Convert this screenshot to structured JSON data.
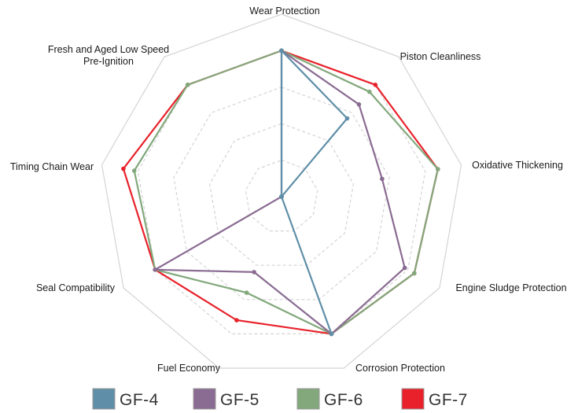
{
  "chart_data": {
    "type": "radar",
    "title": "",
    "axes": [
      "Wear Protection",
      "Piston Cleanliness",
      "Oxidative Thickening",
      "Engine Sludge Protection",
      "Corrosion Protection",
      "Fuel Economy",
      "Seal Compatibility",
      "Timing Chain Wear",
      "Fresh and Aged Low Speed Pre-Ignition"
    ],
    "axis_label_lines": [
      [
        "Wear Protection"
      ],
      [
        "Piston Cleanliness"
      ],
      [
        "Oxidative Thickening"
      ],
      [
        "Engine Sludge Protection"
      ],
      [
        "Corrosion Protection"
      ],
      [
        "Fuel Economy"
      ],
      [
        "Seal Compatibility"
      ],
      [
        "Timing Chain Wear"
      ],
      [
        "Fresh and Aged Low Speed",
        "Pre-Ignition"
      ]
    ],
    "scale": {
      "min": 0,
      "max": 5,
      "rings": 5
    },
    "series": [
      {
        "name": "GF-4",
        "color": "#5f8fa8",
        "values": [
          4,
          2.8,
          0,
          0,
          4,
          0,
          0,
          0,
          0
        ]
      },
      {
        "name": "GF-5",
        "color": "#8a6b92",
        "values": [
          4,
          3.3,
          2.8,
          3.9,
          4,
          2.2,
          4,
          0,
          0
        ]
      },
      {
        "name": "GF-6",
        "color": "#82a87c",
        "values": [
          4,
          3.75,
          4.35,
          4.2,
          4,
          2.8,
          4,
          4.1,
          4
        ]
      },
      {
        "name": "GF-7",
        "color": "#e8212a",
        "values": [
          4,
          4,
          4.35,
          4.2,
          4,
          3.6,
          4,
          4.4,
          4
        ]
      }
    ],
    "legend_position": "bottom",
    "grid": true
  }
}
